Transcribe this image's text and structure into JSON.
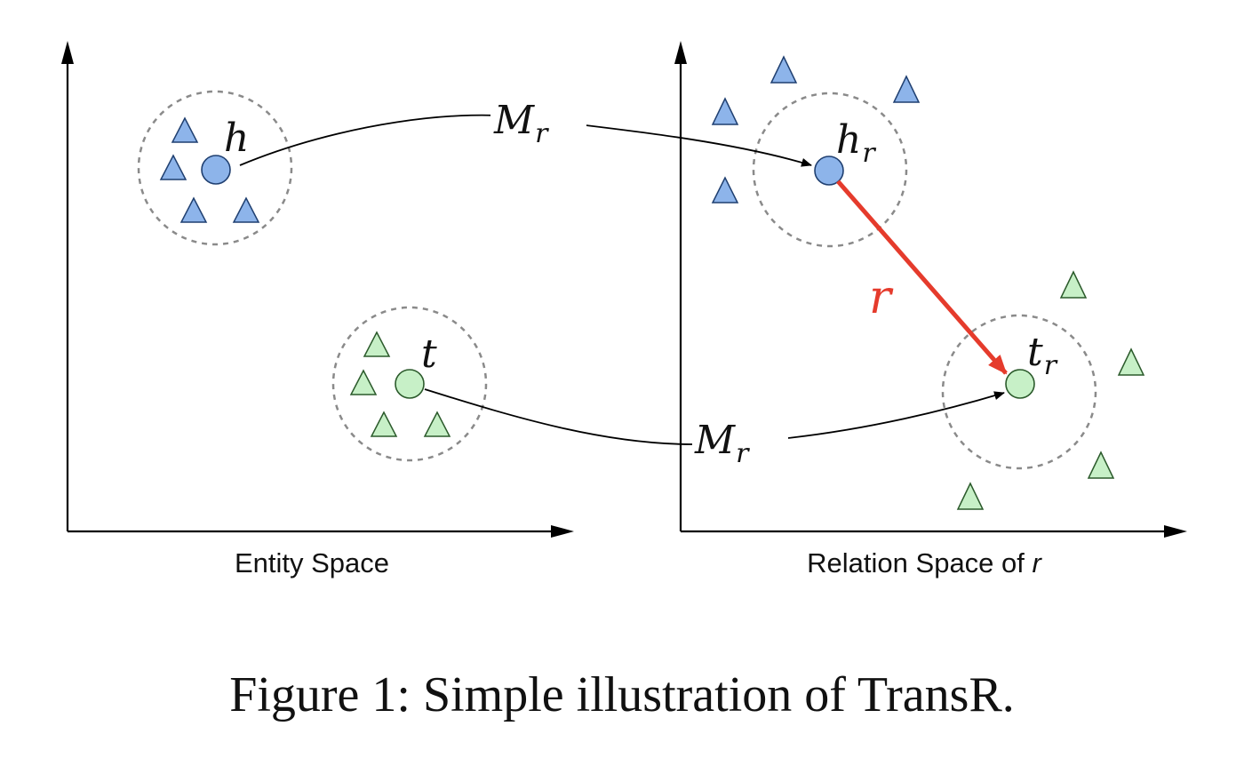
{
  "labels": {
    "h": "h",
    "t": "t",
    "h_r_main": "h",
    "h_r_sub": "r",
    "t_r_main": "t",
    "t_r_sub": "r",
    "m_r_top_main": "M",
    "m_r_top_sub": "r",
    "m_r_bottom_main": "M",
    "m_r_bottom_sub": "r",
    "relation_vector": "r"
  },
  "axes": {
    "left_label": "Entity Space",
    "right_label_prefix": "Relation Space of ",
    "right_label_symbol": "r"
  },
  "caption": "Figure 1: Simple illustration of TransR.",
  "colors": {
    "blue": "#8db4ea",
    "green": "#c7f0c7",
    "relation_arrow": "#e53b2c",
    "dashed_circle": "#8a8a8a"
  }
}
